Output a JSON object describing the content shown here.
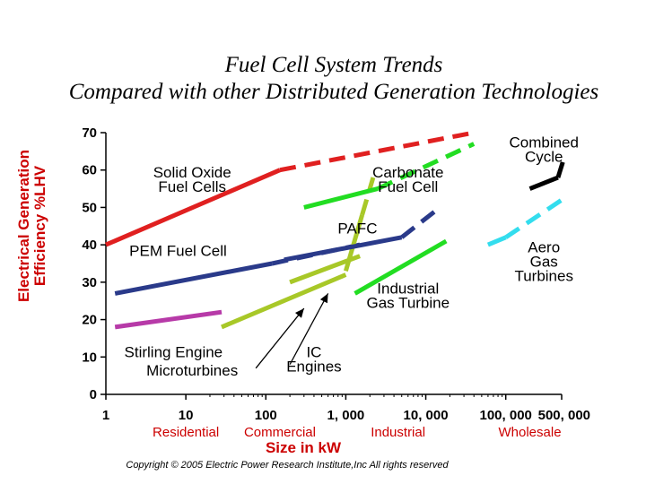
{
  "chart_data": {
    "type": "line",
    "title": "Fuel Cell System Trends",
    "subtitle": "Compared with other Distributed Generation Technologies",
    "ylabel_lines": [
      "Electrical Generation",
      "Efficiency %LHV"
    ],
    "xlabel": "Size in kW",
    "x_scale": "log",
    "xlim": [
      1,
      500000
    ],
    "ylim": [
      0,
      70
    ],
    "x_ticks": [
      {
        "value": 1,
        "label": "1"
      },
      {
        "value": 10,
        "label": "10"
      },
      {
        "value": 100,
        "label": "100"
      },
      {
        "value": 1000,
        "label": "1, 000"
      },
      {
        "value": 10000,
        "label": "10, 000"
      },
      {
        "value": 100000,
        "label": "100, 000"
      },
      {
        "value": 500000,
        "label": "500, 000"
      }
    ],
    "y_ticks": [
      0,
      10,
      20,
      30,
      40,
      50,
      60,
      70
    ],
    "segment_labels": [
      {
        "label": "Residential",
        "x": 10
      },
      {
        "label": "Commercial",
        "x": 150
      },
      {
        "label": "Industrial",
        "x": 4500
      },
      {
        "label": "Wholesale",
        "x": 200000
      }
    ],
    "series": [
      {
        "name": "Solid Oxide Fuel Cells",
        "color": "#e02020",
        "segments": [
          {
            "style": "solid",
            "points": [
              [
                1,
                40
              ],
              [
                150,
                60
              ]
            ]
          },
          {
            "style": "dash",
            "points": [
              [
                150,
                60
              ],
              [
                40000,
                70
              ]
            ]
          }
        ]
      },
      {
        "name": "PEM Fuel Cell",
        "color": "#2a3a8a",
        "segments": [
          {
            "style": "solid",
            "points": [
              [
                1.3,
                27
              ],
              [
                120,
                35
              ]
            ]
          },
          {
            "style": "dash",
            "points": [
              [
                120,
                35
              ],
              [
                1500,
                40
              ]
            ]
          }
        ]
      },
      {
        "name": "Stirling Engine",
        "color": "#b73aa8",
        "segments": [
          {
            "style": "solid",
            "points": [
              [
                1.3,
                18
              ],
              [
                28,
                22
              ]
            ]
          }
        ]
      },
      {
        "name": "Microturbines",
        "color": "#a8c828",
        "segments": [
          {
            "style": "solid",
            "points": [
              [
                28,
                18
              ],
              [
                1000,
                32
              ]
            ]
          }
        ]
      },
      {
        "name": "IC Engines",
        "color": "#a8c828",
        "segments": [
          {
            "style": "solid",
            "points": [
              [
                200,
                30
              ],
              [
                1500,
                37
              ]
            ]
          },
          {
            "style": "solid",
            "points": [
              [
                1000,
                33
              ],
              [
                1600,
                48
              ]
            ]
          },
          {
            "style": "dash",
            "points": [
              [
                1600,
                48
              ],
              [
                2200,
                58
              ]
            ]
          }
        ]
      },
      {
        "name": "Carbonate Fuel Cell",
        "color": "#22dd22",
        "segments": [
          {
            "style": "solid",
            "points": [
              [
                300,
                50
              ],
              [
                2500,
                55
              ]
            ]
          },
          {
            "style": "dash",
            "points": [
              [
                2500,
                55
              ],
              [
                40000,
                67
              ]
            ]
          }
        ]
      },
      {
        "name": "PAFC",
        "color": "#2a3a8a",
        "segments": [
          {
            "style": "solid",
            "points": [
              [
                170,
                36
              ],
              [
                5000,
                42
              ]
            ]
          },
          {
            "style": "dash",
            "points": [
              [
                5000,
                42
              ],
              [
                15000,
                50
              ]
            ]
          }
        ]
      },
      {
        "name": "Industrial Gas Turbine",
        "color": "#22dd22",
        "segments": [
          {
            "style": "solid",
            "points": [
              [
                1300,
                27
              ],
              [
                18000,
                41
              ]
            ]
          }
        ]
      },
      {
        "name": "Aero Gas Turbines",
        "color": "#33ddee",
        "segments": [
          {
            "style": "solid",
            "points": [
              [
                60000,
                40
              ],
              [
                100000,
                42
              ]
            ]
          },
          {
            "style": "dash",
            "points": [
              [
                100000,
                42
              ],
              [
                500000,
                52
              ]
            ]
          }
        ]
      },
      {
        "name": "Combined Cycle",
        "color": "#000000",
        "segments": [
          {
            "style": "solid",
            "points": [
              [
                200000,
                55
              ],
              [
                450000,
                58
              ]
            ]
          },
          {
            "style": "dash",
            "points": [
              [
                450000,
                58
              ],
              [
                550000,
                64
              ]
            ]
          }
        ]
      }
    ],
    "annotations": [
      {
        "lines": [
          "Solid Oxide",
          "Fuel Cells"
        ],
        "x": 12,
        "y": 58
      },
      {
        "lines": [
          "Carbonate",
          "Fuel Cell"
        ],
        "x": 6000,
        "y": 58
      },
      {
        "lines": [
          "Combined",
          "Cycle"
        ],
        "x": 300000,
        "y": 66
      },
      {
        "lines": [
          "PAFC"
        ],
        "x": 1400,
        "y": 43
      },
      {
        "lines": [
          "PEM Fuel Cell"
        ],
        "x": 8,
        "y": 37
      },
      {
        "lines": [
          "Aero",
          "Gas",
          "Turbines"
        ],
        "x": 300000,
        "y": 38
      },
      {
        "lines": [
          "Industrial",
          "Gas Turbine"
        ],
        "x": 6000,
        "y": 27
      },
      {
        "lines": [
          "IC",
          "Engines"
        ],
        "x": 400,
        "y": 10
      },
      {
        "lines": [
          "Stirling Engine"
        ],
        "x": 7,
        "y": 10
      },
      {
        "lines": [
          "Microturbines"
        ],
        "x": 12,
        "y": 5
      }
    ],
    "arrows": [
      {
        "from": [
          200,
          8
        ],
        "to": [
          600,
          27
        ]
      },
      {
        "from": [
          75,
          7
        ],
        "to": [
          300,
          23
        ]
      }
    ],
    "grid": false
  },
  "copyright": "Copyright © 2005 Electric Power Research Institute,Inc All rights reserved"
}
